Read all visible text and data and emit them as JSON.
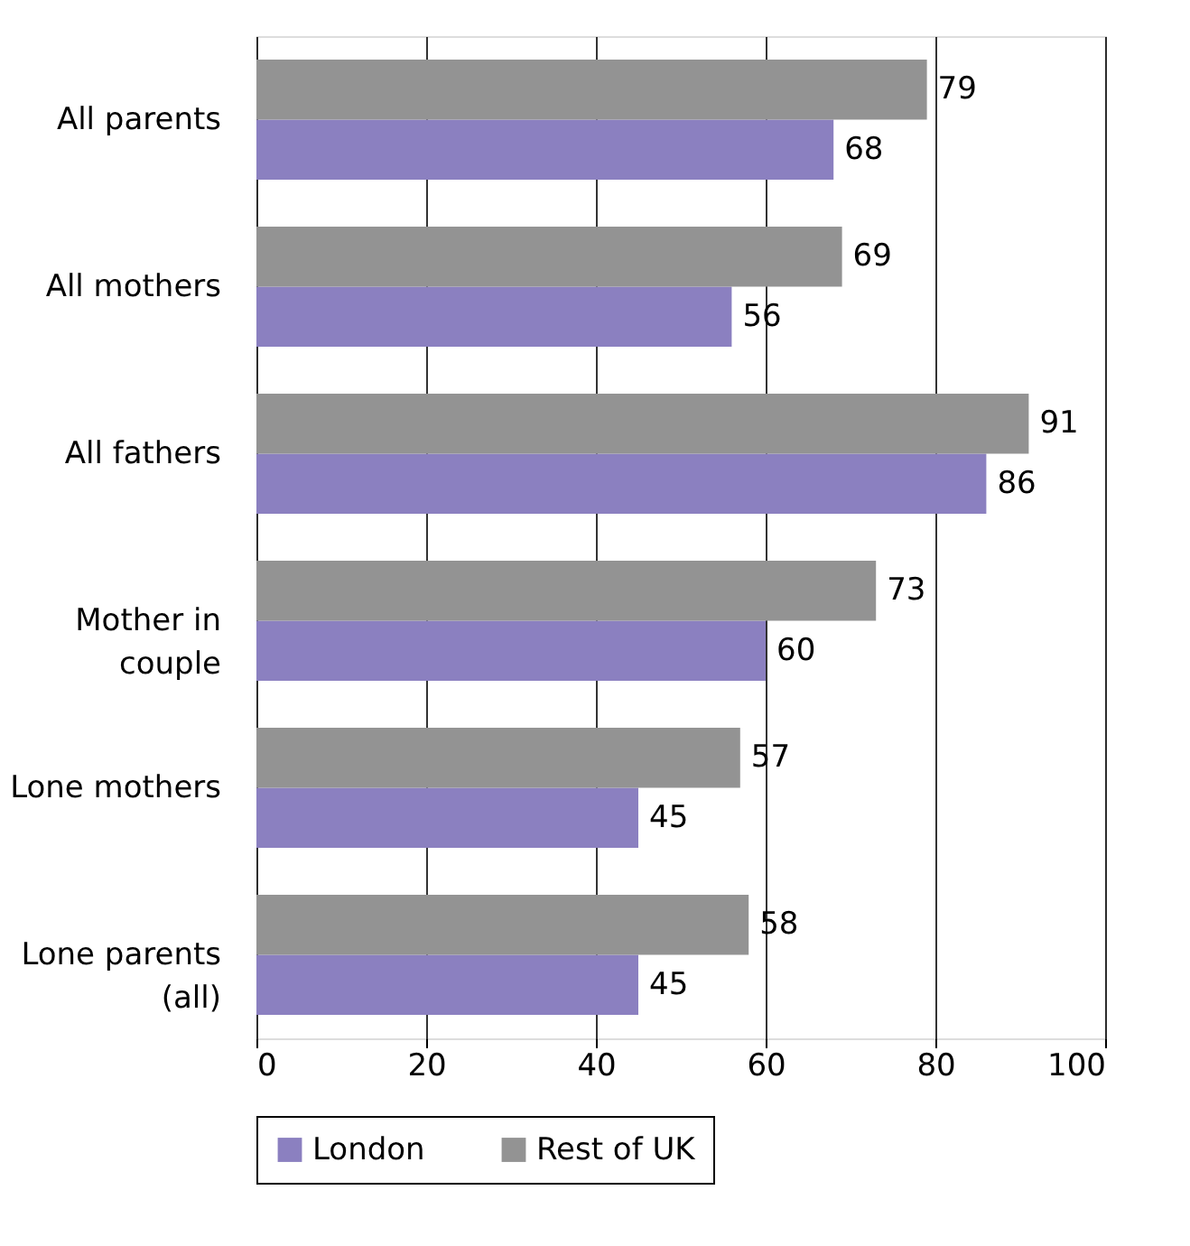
{
  "chart_data": {
    "type": "bar",
    "orientation": "horizontal",
    "categories": [
      "All parents",
      "All mothers",
      "All fathers",
      "Mother in\ncouple",
      "Lone mothers",
      "Lone parents\n(all)"
    ],
    "series": [
      {
        "name": "London",
        "color": "#8b80c0",
        "values": [
          68,
          56,
          86,
          60,
          45,
          45
        ]
      },
      {
        "name": "Rest of UK",
        "color": "#939393",
        "values": [
          79,
          69,
          91,
          73,
          57,
          58
        ]
      }
    ],
    "xlim": [
      0,
      100
    ],
    "xticks": [
      0,
      20,
      40,
      60,
      80,
      100
    ],
    "grid": "x",
    "legend": "bottom",
    "data_labels": true
  }
}
